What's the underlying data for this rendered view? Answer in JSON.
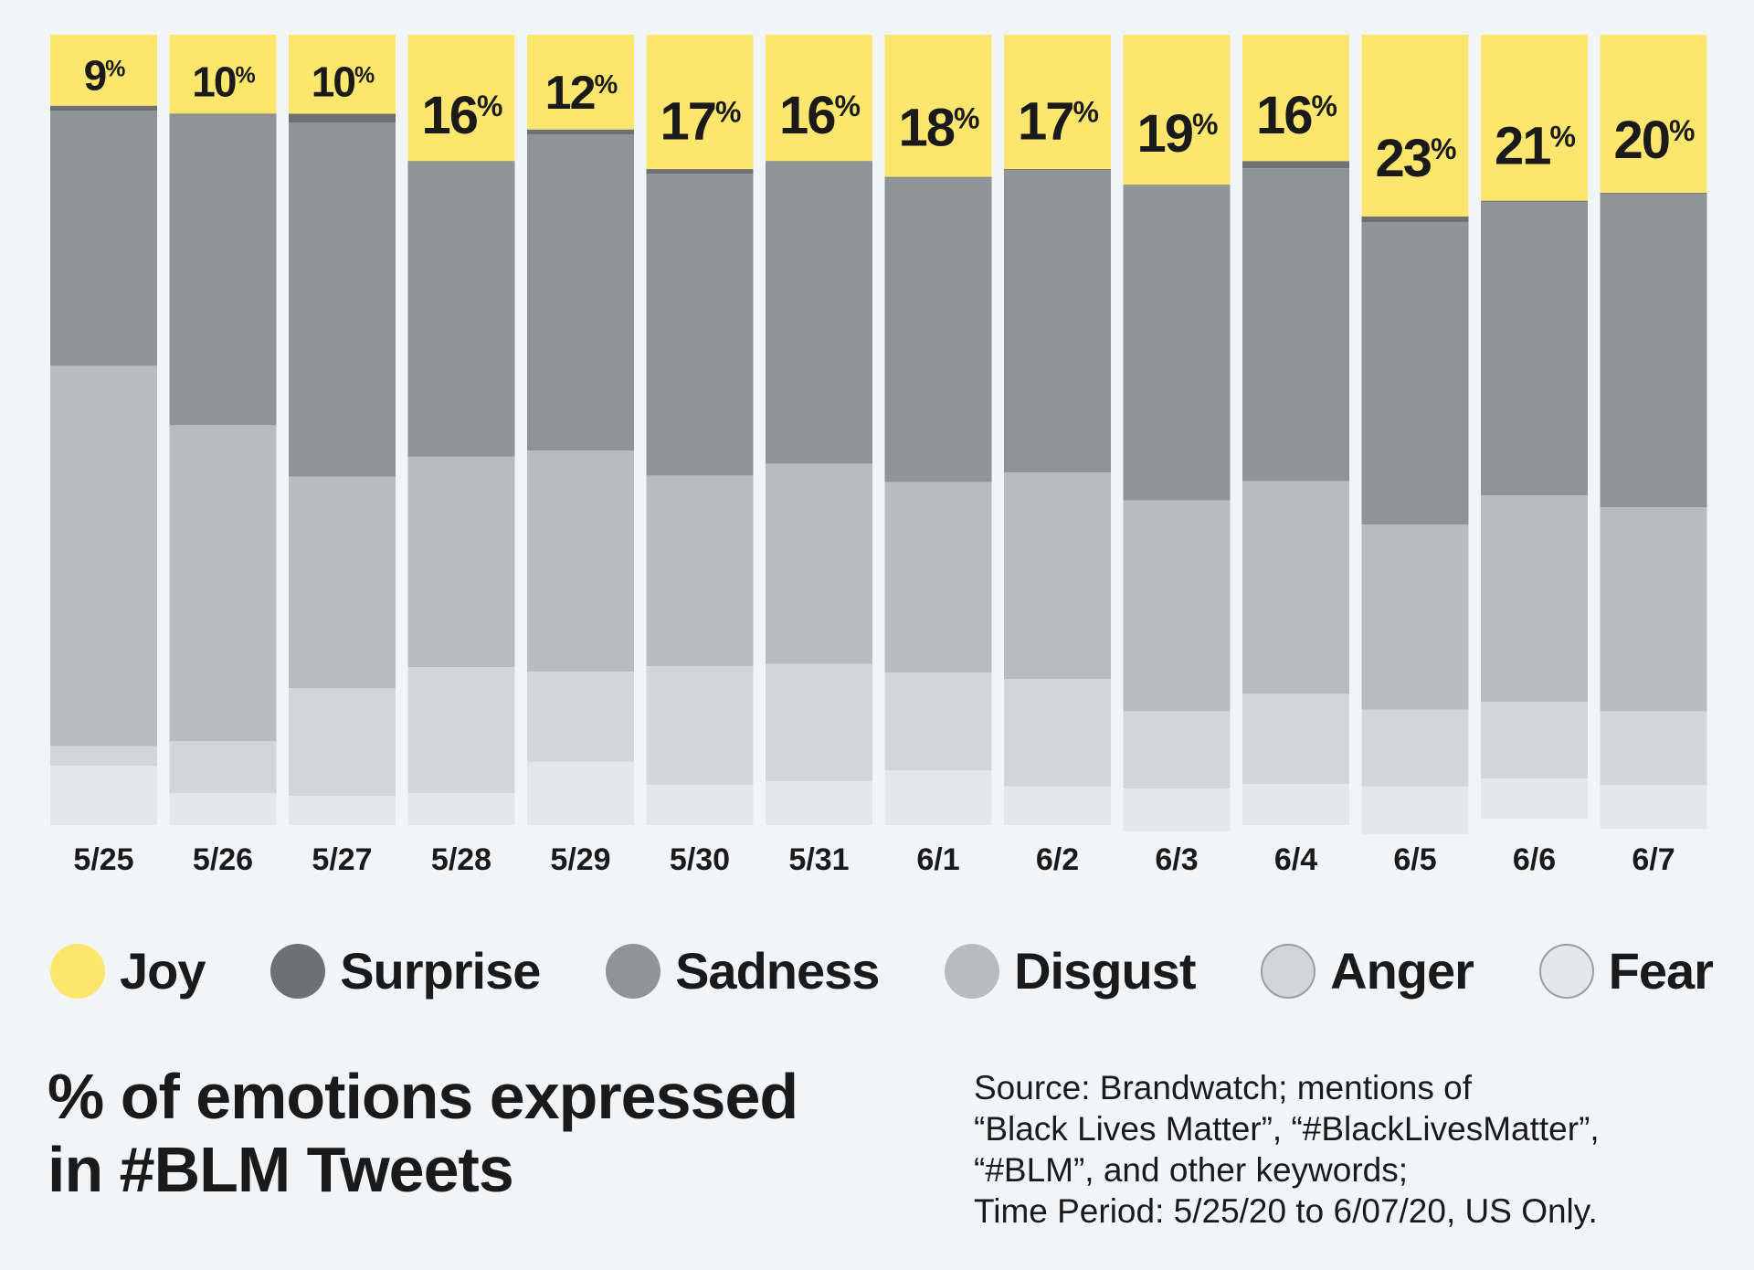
{
  "chart_data": {
    "type": "bar",
    "stacked": true,
    "normalized_to_100": true,
    "categories": [
      "5/25",
      "5/26",
      "5/27",
      "5/28",
      "5/29",
      "5/30",
      "5/31",
      "6/1",
      "6/2",
      "6/3",
      "6/4",
      "6/5",
      "6/6",
      "6/7"
    ],
    "series": [
      {
        "name": "Joy",
        "color": "#fde66e",
        "values": [
          9,
          10,
          10,
          16,
          12,
          17,
          16,
          18,
          17,
          19,
          16,
          23,
          21,
          20
        ]
      },
      {
        "name": "Surprise",
        "color": "#6f7073",
        "values": [
          0.6,
          0.1,
          1.1,
          0.1,
          0.6,
          0.6,
          0.1,
          0.1,
          0.1,
          0.1,
          0.9,
          0.7,
          0.1,
          0.1
        ]
      },
      {
        "name": "Sadness",
        "color": "#8f9496",
        "values": [
          32.3,
          39.3,
          44.8,
          37.3,
          40.0,
          38.2,
          38.2,
          38.5,
          38.3,
          39.8,
          39.6,
          38.3,
          37.2,
          39.7
        ]
      },
      {
        "name": "Disgust",
        "color": "#b9bcbe",
        "values": [
          48.1,
          40.0,
          26.8,
          26.6,
          28.0,
          24.1,
          25.3,
          24.1,
          26.1,
          26.7,
          26.9,
          23.4,
          26.1,
          25.8
        ]
      },
      {
        "name": "Anger",
        "color": "#d2d6d9",
        "values": [
          2.5,
          6.6,
          13.6,
          16.0,
          11.4,
          15.0,
          14.9,
          12.4,
          13.6,
          9.8,
          11.4,
          9.7,
          9.7,
          9.4
        ]
      },
      {
        "name": "Fear",
        "color": "#e4e8eb",
        "values": [
          7.5,
          4.0,
          3.7,
          4.0,
          8.0,
          5.1,
          5.5,
          6.9,
          4.9,
          5.4,
          5.2,
          6.1,
          5.1,
          5.5
        ]
      }
    ],
    "data_labels": {
      "series": "Joy",
      "texts": [
        "9",
        "10",
        "10",
        "16",
        "12",
        "17",
        "16",
        "18",
        "17",
        "19",
        "16",
        "23",
        "21",
        "20"
      ],
      "unit": "%"
    },
    "ylim": [
      0,
      100
    ],
    "legend_position": "bottom",
    "grid": false
  },
  "legend": [
    {
      "label": "Joy",
      "color": "#fde66e"
    },
    {
      "label": "Surprise",
      "color": "#6f7073"
    },
    {
      "label": "Sadness",
      "color": "#8f9496"
    },
    {
      "label": "Disgust",
      "color": "#b9bcbe"
    },
    {
      "label": "Anger",
      "color": "#d2d6d9"
    },
    {
      "label": "Fear",
      "color": "#e4e8eb"
    }
  ],
  "title_lines": [
    "% of emotions expressed",
    "in #BLM Tweets"
  ],
  "source_lines": [
    "Source: Brandwatch; mentions of",
    "“Black Lives Matter”, “#BlackLivesMatter”,",
    "“#BLM”, and other keywords;",
    "Time Period: 5/25/20 to 6/07/20, US Only."
  ]
}
